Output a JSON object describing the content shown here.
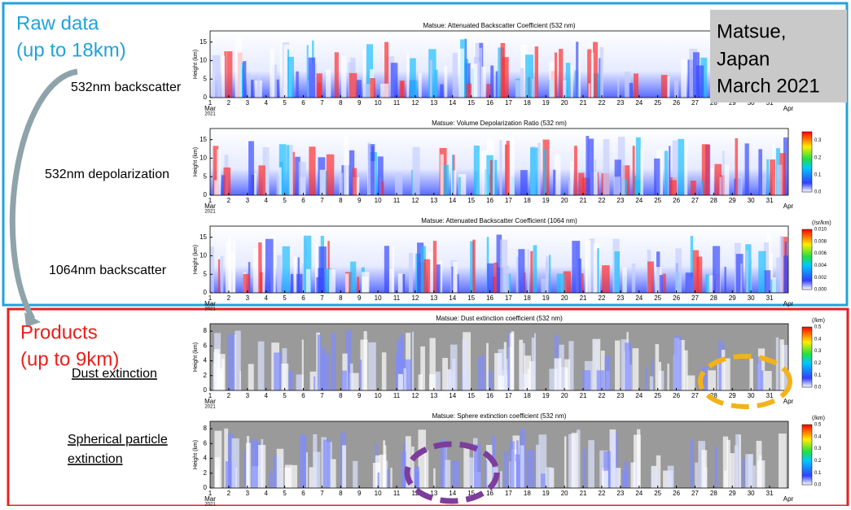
{
  "raw_section": {
    "title": "Raw data",
    "subtitle": "(up to 18km)"
  },
  "products_section": {
    "title": "Products",
    "subtitle": "(up to 9km)"
  },
  "info_box": {
    "lines": [
      "Matsue,",
      "Japan",
      "March 2021"
    ]
  },
  "row_labels": [
    "532nm backscatter",
    "532nm depolarization",
    "1064nm backscatter",
    "Dust extinction",
    "Spherical particle",
    "extinction"
  ],
  "x_axis": {
    "days": [
      "1",
      "2",
      "3",
      "4",
      "5",
      "6",
      "7",
      "8",
      "9",
      "10",
      "11",
      "12",
      "13",
      "14",
      "15",
      "16",
      "17",
      "18",
      "19",
      "20",
      "21",
      "22",
      "23",
      "24",
      "25",
      "26",
      "27",
      "28",
      "29",
      "30",
      "31"
    ],
    "end_label": "Apr",
    "month": "Mar",
    "year": "2021"
  },
  "panels": [
    {
      "title": "Matsue: Attenuated Backscatter Coefficient (532 nm)",
      "y_label": "Height (km)",
      "yticks": [
        "0",
        "5",
        "10",
        "15"
      ]
    },
    {
      "title": "Matsue: Volume Depolarization Ratio (532 nm)",
      "y_label": "Height (km)",
      "yticks": [
        "0",
        "5",
        "10",
        "15"
      ],
      "colorbar_ticks": [
        "0.0",
        "0.1",
        "0.2",
        "0.3"
      ]
    },
    {
      "title": "Matsue: Attenuated Backscatter Coefficient (1064 nm)",
      "y_label": "Height (km)",
      "yticks": [
        "0",
        "5",
        "10",
        "15"
      ],
      "colorbar_ticks": [
        "0.000",
        "0.002",
        "0.004",
        "0.006",
        "0.008",
        "0.010"
      ],
      "colorbar_unit": "(/sr/km)"
    },
    {
      "title": "Matsue: Dust extinction coefficient (532 nm)",
      "y_label": "Height (km)",
      "yticks": [
        "0",
        "2",
        "4",
        "6",
        "8"
      ],
      "colorbar_ticks": [
        "0.0",
        "0.1",
        "0.2",
        "0.3",
        "0.4",
        "0.5"
      ],
      "colorbar_unit": "(/km)"
    },
    {
      "title": "Matsue: Sphere extinction coefficient (532 nm)",
      "y_label": "Height (km)",
      "yticks": [
        "0",
        "2",
        "4",
        "6",
        "8"
      ],
      "colorbar_ticks": [
        "0.0",
        "0.1",
        "0.2",
        "0.3",
        "0.4",
        "0.5"
      ],
      "colorbar_unit": "(/km)"
    }
  ]
}
